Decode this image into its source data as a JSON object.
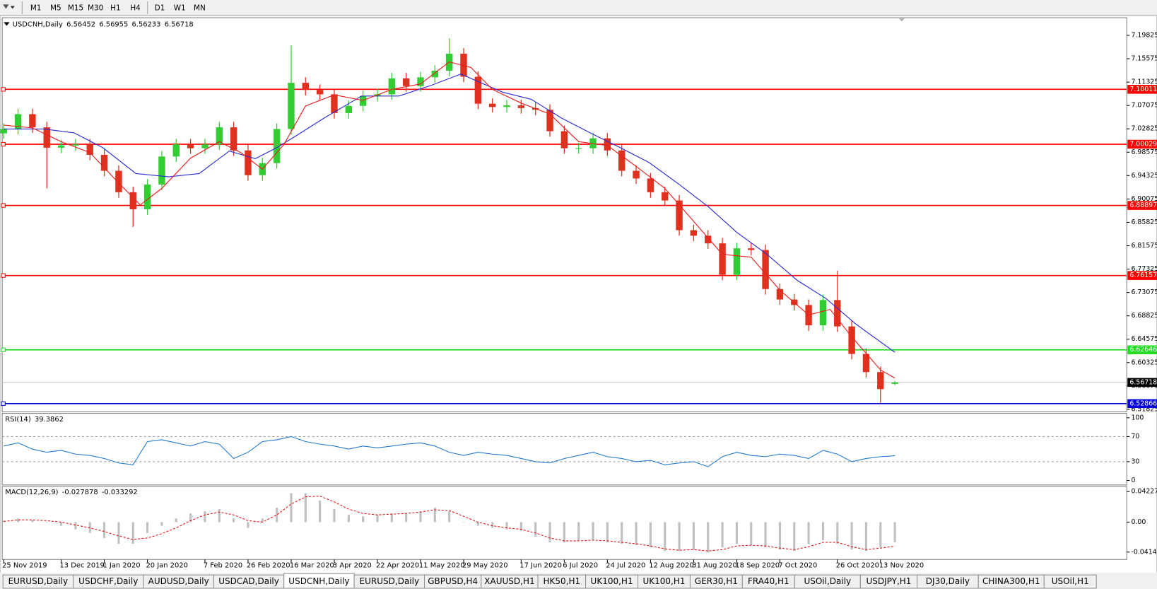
{
  "toolbar": {
    "timeframes": [
      "M1",
      "M5",
      "M15",
      "M30",
      "H1",
      "H4",
      "D1",
      "W1",
      "MN"
    ]
  },
  "tabs": [
    "EURUSD,Daily",
    "USDCHF,Daily",
    "AUDUSD,Daily",
    "USDCAD,Daily",
    "USDCNH,Daily",
    "EURUSD,Daily",
    "GBPUSD,H4",
    "XAUUSD,H1",
    "HK50,H1",
    "UK100,H1",
    "UK100,H1",
    "GER30,H1",
    "FRA40,H1",
    "USOil,Daily",
    "USDJPY,H1",
    "DJ30,Daily",
    "CHINA300,H1",
    "USOil,H1"
  ],
  "active_tab": 4,
  "chart_data": [
    {
      "type": "candlestick",
      "title": "USDCNH,Daily",
      "categories": [
        "25 Nov 2019",
        null,
        null,
        null,
        "13 Dec 2019",
        null,
        null,
        "1 Jan 2020",
        null,
        null,
        "20 Jan 2020",
        null,
        null,
        null,
        "7 Feb 2020",
        null,
        null,
        "26 Feb 2020",
        null,
        null,
        "16 Mar 2020",
        null,
        null,
        "3 Apr 2020",
        null,
        null,
        "22 Apr 2020",
        null,
        null,
        "11 May 2020",
        null,
        null,
        "29 May 2020",
        null,
        null,
        null,
        "17 Jun 2020",
        null,
        null,
        "6 Jul 2020",
        null,
        null,
        "24 Jul 2020",
        null,
        null,
        "12 Aug 2020",
        null,
        null,
        "31 Aug 2020",
        null,
        null,
        "18 Sep 2020",
        null,
        null,
        "7 Oct 2020",
        null,
        null,
        null,
        "26 Oct 2020",
        null,
        null,
        "13 Nov 2020",
        null
      ],
      "open": [
        7.02,
        7.028,
        7.055,
        7.031,
        6.994,
        6.998,
        7.0,
        6.981,
        6.952,
        6.913,
        6.882,
        6.927,
        6.978,
        7.0,
        6.993,
        7.0,
        7.031,
        6.989,
        6.944,
        6.966,
        7.028,
        7.112,
        7.099,
        7.091,
        7.057,
        7.07,
        7.088,
        7.091,
        7.12,
        7.106,
        7.122,
        7.134,
        7.165,
        7.123,
        7.074,
        7.068,
        7.071,
        7.066,
        7.063,
        7.024,
        6.993,
        6.993,
        7.011,
        6.989,
        6.952,
        6.938,
        6.913,
        6.898,
        6.844,
        6.834,
        6.82,
        6.763,
        6.811,
        6.808,
        6.737,
        6.718,
        6.708,
        6.671,
        6.717,
        6.669,
        6.619,
        6.586,
        6.56452
      ],
      "high": [
        7.038,
        7.065,
        7.065,
        7.041,
        7.008,
        7.01,
        7.01,
        6.991,
        6.962,
        6.923,
        6.937,
        6.988,
        7.01,
        7.01,
        7.01,
        7.041,
        7.041,
        6.999,
        6.976,
        7.038,
        7.18,
        7.122,
        7.109,
        7.101,
        7.08,
        7.098,
        7.101,
        7.13,
        7.13,
        7.132,
        7.144,
        7.193,
        7.175,
        7.133,
        7.084,
        7.081,
        7.081,
        7.076,
        7.073,
        7.034,
        7.003,
        7.021,
        7.021,
        6.999,
        6.962,
        6.948,
        6.923,
        6.908,
        6.854,
        6.844,
        6.83,
        6.821,
        6.821,
        6.818,
        6.747,
        6.728,
        6.718,
        6.727,
        6.77,
        6.679,
        6.629,
        6.596,
        6.56955
      ],
      "low": [
        7.01,
        7.018,
        7.021,
        6.92,
        6.984,
        6.988,
        6.971,
        6.942,
        6.903,
        6.85,
        6.872,
        6.917,
        6.968,
        6.983,
        6.983,
        6.99,
        6.979,
        6.934,
        6.934,
        6.956,
        7.018,
        7.089,
        7.081,
        7.047,
        7.047,
        7.06,
        7.078,
        7.081,
        7.096,
        7.096,
        7.112,
        7.124,
        7.113,
        7.064,
        7.058,
        7.058,
        7.056,
        7.053,
        7.014,
        6.983,
        6.983,
        6.983,
        6.979,
        6.942,
        6.928,
        6.903,
        6.888,
        6.834,
        6.824,
        6.81,
        6.753,
        6.753,
        6.798,
        6.727,
        6.708,
        6.698,
        6.661,
        6.661,
        6.659,
        6.609,
        6.576,
        6.53,
        6.56233
      ],
      "close": [
        7.028,
        7.055,
        7.031,
        6.994,
        6.998,
        7.0,
        6.981,
        6.952,
        6.913,
        6.882,
        6.927,
        6.978,
        7.0,
        6.993,
        7.0,
        7.031,
        6.989,
        6.944,
        6.966,
        7.028,
        7.112,
        7.099,
        7.091,
        7.057,
        7.07,
        7.088,
        7.091,
        7.12,
        7.106,
        7.122,
        7.134,
        7.165,
        7.123,
        7.074,
        7.068,
        7.071,
        7.066,
        7.063,
        7.024,
        6.993,
        6.993,
        7.011,
        6.989,
        6.952,
        6.938,
        6.913,
        6.898,
        6.844,
        6.834,
        6.82,
        6.763,
        6.811,
        6.808,
        6.737,
        6.718,
        6.708,
        6.671,
        6.717,
        6.669,
        6.619,
        6.586,
        6.555,
        6.56718
      ],
      "up_color": "#32cd32",
      "down_color": "#e0301e",
      "moving_averages": [
        {
          "color": "#2b2bd6",
          "x": [
            0,
            2.8,
            4.9,
            6.9,
            9.2,
            11.5,
            13.6,
            15.7,
            17.5,
            19,
            20.3,
            22.3,
            24.9,
            27.5,
            29.8,
            31.8,
            34.7,
            36.7,
            38.8,
            40.8,
            42.9,
            44.9,
            47,
            49,
            51,
            53.1,
            55.2,
            57.2,
            59.3,
            62
          ],
          "values": [
            7.028,
            7.028,
            7.021,
            6.994,
            6.947,
            6.941,
            6.947,
            6.988,
            6.974,
            6.994,
            7.015,
            7.048,
            7.088,
            7.088,
            7.108,
            7.128,
            7.095,
            7.082,
            7.048,
            7.021,
            6.994,
            6.967,
            6.927,
            6.887,
            6.84,
            6.8,
            6.753,
            6.72,
            6.673,
            6.622
          ]
        },
        {
          "color": "#e82020",
          "x": [
            0,
            2,
            4,
            6,
            8,
            9.5,
            11,
            13,
            15,
            16.5,
            18,
            19.5,
            21,
            23,
            25,
            27,
            29,
            31,
            32.5,
            34,
            36,
            38,
            40,
            42,
            44,
            46,
            48,
            50,
            52,
            54,
            56,
            57.5,
            59,
            61,
            62
          ],
          "values": [
            7.035,
            7.03,
            7.005,
            6.985,
            6.93,
            6.89,
            6.92,
            6.975,
            7.005,
            6.985,
            6.955,
            7.0,
            7.07,
            7.09,
            7.08,
            7.1,
            7.11,
            7.15,
            7.14,
            7.1,
            7.075,
            7.055,
            7.005,
            6.998,
            6.96,
            6.92,
            6.86,
            6.8,
            6.795,
            6.735,
            6.69,
            6.7,
            6.65,
            6.59,
            6.575
          ]
        }
      ],
      "levels": [
        {
          "value": 7.10011,
          "color": "#ff0000"
        },
        {
          "value": 7.00029,
          "color": "#ff0000"
        },
        {
          "value": 6.88897,
          "color": "#ff0000"
        },
        {
          "value": 6.76157,
          "color": "#ff0000"
        },
        {
          "value": 6.62646,
          "color": "#22dd22"
        },
        {
          "value": 6.52866,
          "color": "#0000dd"
        }
      ],
      "ylim": [
        6.515,
        7.229
      ],
      "yticks": [
        7.19825,
        7.15575,
        7.11325,
        7.07075,
        7.02825,
        6.98575,
        6.94325,
        6.90075,
        6.85825,
        6.81575,
        6.77325,
        6.73075,
        6.68825,
        6.64575,
        6.60325,
        6.56075,
        6.51825
      ]
    },
    {
      "type": "line",
      "title": "RSI(14)",
      "color": "#1e78d2",
      "values": [
        55,
        60,
        50,
        45,
        48,
        42,
        40,
        35,
        28,
        25,
        62,
        65,
        60,
        55,
        62,
        58,
        35,
        45,
        62,
        65,
        70,
        62,
        58,
        55,
        50,
        55,
        52,
        55,
        58,
        60,
        55,
        45,
        40,
        45,
        42,
        40,
        35,
        30,
        28,
        35,
        40,
        45,
        38,
        35,
        30,
        32,
        25,
        28,
        30,
        22,
        38,
        45,
        40,
        38,
        42,
        40,
        35,
        48,
        42,
        30,
        35,
        38,
        39.3862
      ],
      "levels": [
        70,
        30
      ],
      "ylim": [
        -7.1,
        107.1
      ],
      "yticks": [
        100,
        70,
        30,
        0
      ]
    },
    {
      "type": "macd",
      "title": "MACD(12,26,9)",
      "color": "#c0c0c0",
      "signal_color": "#e01010",
      "histogram": [
        0.002,
        0.005,
        0.003,
        0.0,
        -0.005,
        -0.01,
        -0.015,
        -0.022,
        -0.03,
        -0.03,
        -0.015,
        -0.005,
        0.005,
        0.012,
        0.015,
        0.018,
        0.005,
        -0.008,
        0.005,
        0.02,
        0.04,
        0.04,
        0.03,
        0.018,
        0.01,
        0.008,
        0.01,
        0.012,
        0.012,
        0.015,
        0.02,
        0.015,
        0.0,
        -0.005,
        -0.008,
        -0.01,
        -0.012,
        -0.02,
        -0.028,
        -0.028,
        -0.025,
        -0.025,
        -0.028,
        -0.03,
        -0.032,
        -0.035,
        -0.04,
        -0.04,
        -0.038,
        -0.042,
        -0.035,
        -0.03,
        -0.032,
        -0.035,
        -0.038,
        -0.04,
        -0.03,
        -0.025,
        -0.03,
        -0.038,
        -0.04,
        -0.035,
        -0.027878
      ],
      "signal": [
        0.001,
        0.003,
        0.003,
        0.002,
        0.0,
        -0.004,
        -0.008,
        -0.013,
        -0.019,
        -0.024,
        -0.022,
        -0.016,
        -0.008,
        0.002,
        0.01,
        0.014,
        0.01,
        0.002,
        0.0,
        0.01,
        0.025,
        0.035,
        0.036,
        0.028,
        0.018,
        0.012,
        0.01,
        0.011,
        0.012,
        0.014,
        0.017,
        0.016,
        0.008,
        0.0,
        -0.005,
        -0.008,
        -0.01,
        -0.015,
        -0.022,
        -0.026,
        -0.026,
        -0.025,
        -0.026,
        -0.028,
        -0.03,
        -0.033,
        -0.037,
        -0.039,
        -0.038,
        -0.04,
        -0.038,
        -0.033,
        -0.032,
        -0.033,
        -0.036,
        -0.038,
        -0.034,
        -0.028,
        -0.028,
        -0.034,
        -0.038,
        -0.036,
        -0.033292
      ],
      "ylim": [
        -0.0507,
        0.0484
      ],
      "yticks": [
        0.042275,
        {
          "value": 0,
          "label": "0.00"
        },
        -0.04148
      ]
    }
  ]
}
